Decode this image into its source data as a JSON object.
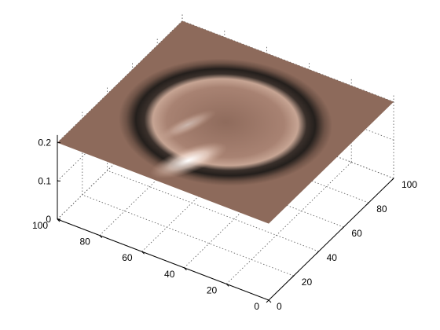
{
  "chart_data": {
    "type": "surface",
    "title": "",
    "xlabel": "",
    "ylabel": "",
    "zlabel": "",
    "grid": true,
    "colormap": "copper-like shaded surface",
    "colors": {
      "base": "#8d6a5b",
      "dark_ring": "#2b2522",
      "highlight": "#ffffff",
      "axis": "#000000",
      "grid": "#555555"
    },
    "x_axis": {
      "ticks": [
        0,
        20,
        40,
        60,
        80,
        100
      ],
      "labels": [
        "0",
        "20",
        "40",
        "60",
        "80",
        "100"
      ],
      "range": [
        0,
        100
      ]
    },
    "y_axis": {
      "ticks": [
        0,
        20,
        40,
        60,
        80,
        100
      ],
      "labels": [
        "0",
        "20",
        "40",
        "60",
        "80",
        "100"
      ],
      "range": [
        0,
        100
      ]
    },
    "z_axis": {
      "ticks": [
        0,
        0.1,
        0.2
      ],
      "labels": [
        "0",
        "0.1",
        "0.2"
      ],
      "range": [
        0,
        0.22
      ]
    },
    "surface": {
      "description_value": "flat plane at z≈0.2 with a circular ring depression",
      "plane_z": 0.2,
      "ring_center": [
        50,
        50
      ],
      "ring_radius": 30
    }
  }
}
